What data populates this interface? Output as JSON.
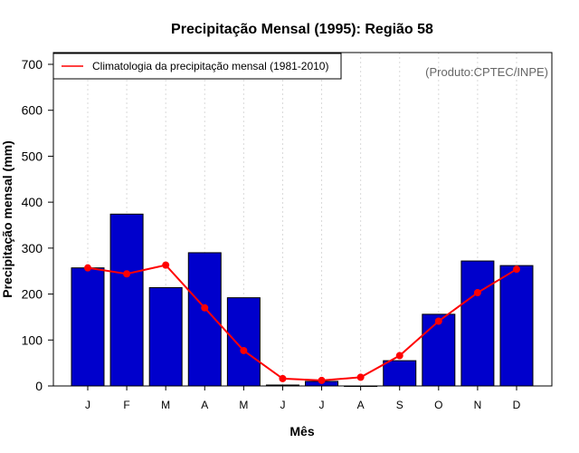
{
  "colors": {
    "bar": "#0000cc",
    "line": "#ff0000",
    "grid": "#d9d9d9",
    "annotation": "#666666"
  },
  "chart_data": {
    "type": "bar",
    "title": "Precipitação Mensal (1995): Região 58",
    "xlabel": "Mês",
    "ylabel": "Precipitação mensal (mm)",
    "ylim": [
      0,
      700
    ],
    "yticks": [
      0,
      100,
      200,
      300,
      400,
      500,
      600,
      700
    ],
    "categories": [
      "J",
      "F",
      "M",
      "A",
      "M",
      "J",
      "J",
      "A",
      "S",
      "O",
      "N",
      "D"
    ],
    "series": [
      {
        "name": "Precipitação mensal (1995)",
        "kind": "bar",
        "values": [
          257,
          374,
          214,
          290,
          192,
          2,
          10,
          0,
          55,
          156,
          272,
          262
        ]
      },
      {
        "name": "Climatologia da precipitação mensal (1981-2010)",
        "kind": "line",
        "values": [
          257,
          244,
          263,
          170,
          77,
          16,
          12,
          19,
          66,
          141,
          203,
          254
        ]
      }
    ],
    "legend": {
      "position": "top-left",
      "label": "Climatologia da precipitação mensal (1981-2010)"
    },
    "annotation": "(Produto:CPTEC/INPE)",
    "grid": true
  }
}
